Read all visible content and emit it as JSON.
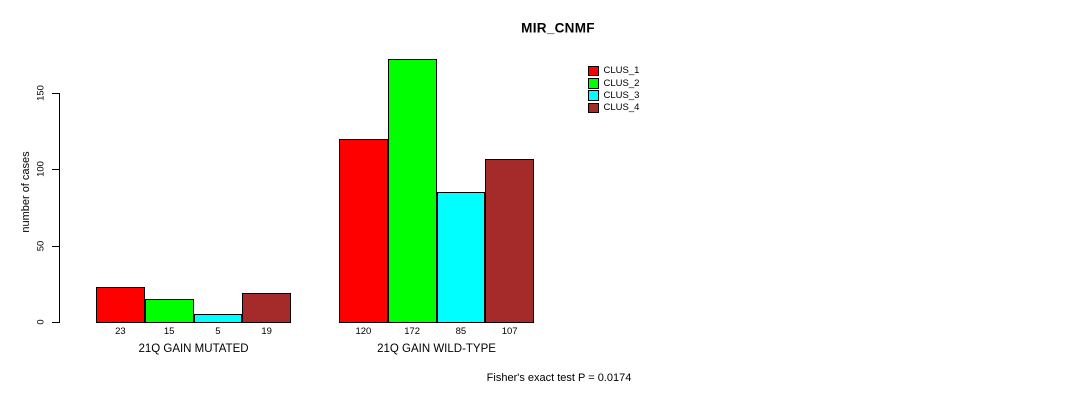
{
  "title": "MIR_CNMF",
  "chart_data": {
    "type": "bar",
    "title": "MIR_CNMF",
    "ylabel": "number of cases",
    "xlabel": "",
    "ylim": [
      0,
      175
    ],
    "yticks": [
      0,
      50,
      100,
      150
    ],
    "grid": false,
    "legend_position": "top-right",
    "categories": [
      "21Q GAIN MUTATED",
      "21Q GAIN WILD-TYPE"
    ],
    "series": [
      {
        "name": "CLUS_1",
        "color": "#ff0000",
        "values": [
          23,
          120
        ]
      },
      {
        "name": "CLUS_2",
        "color": "#00ff00",
        "values": [
          15,
          172
        ]
      },
      {
        "name": "CLUS_3",
        "color": "#00ffff",
        "values": [
          5,
          85
        ]
      },
      {
        "name": "CLUS_4",
        "color": "#a52a2a",
        "values": [
          19,
          107
        ]
      }
    ],
    "annotation": "Fisher's exact test P = 0.0174"
  }
}
